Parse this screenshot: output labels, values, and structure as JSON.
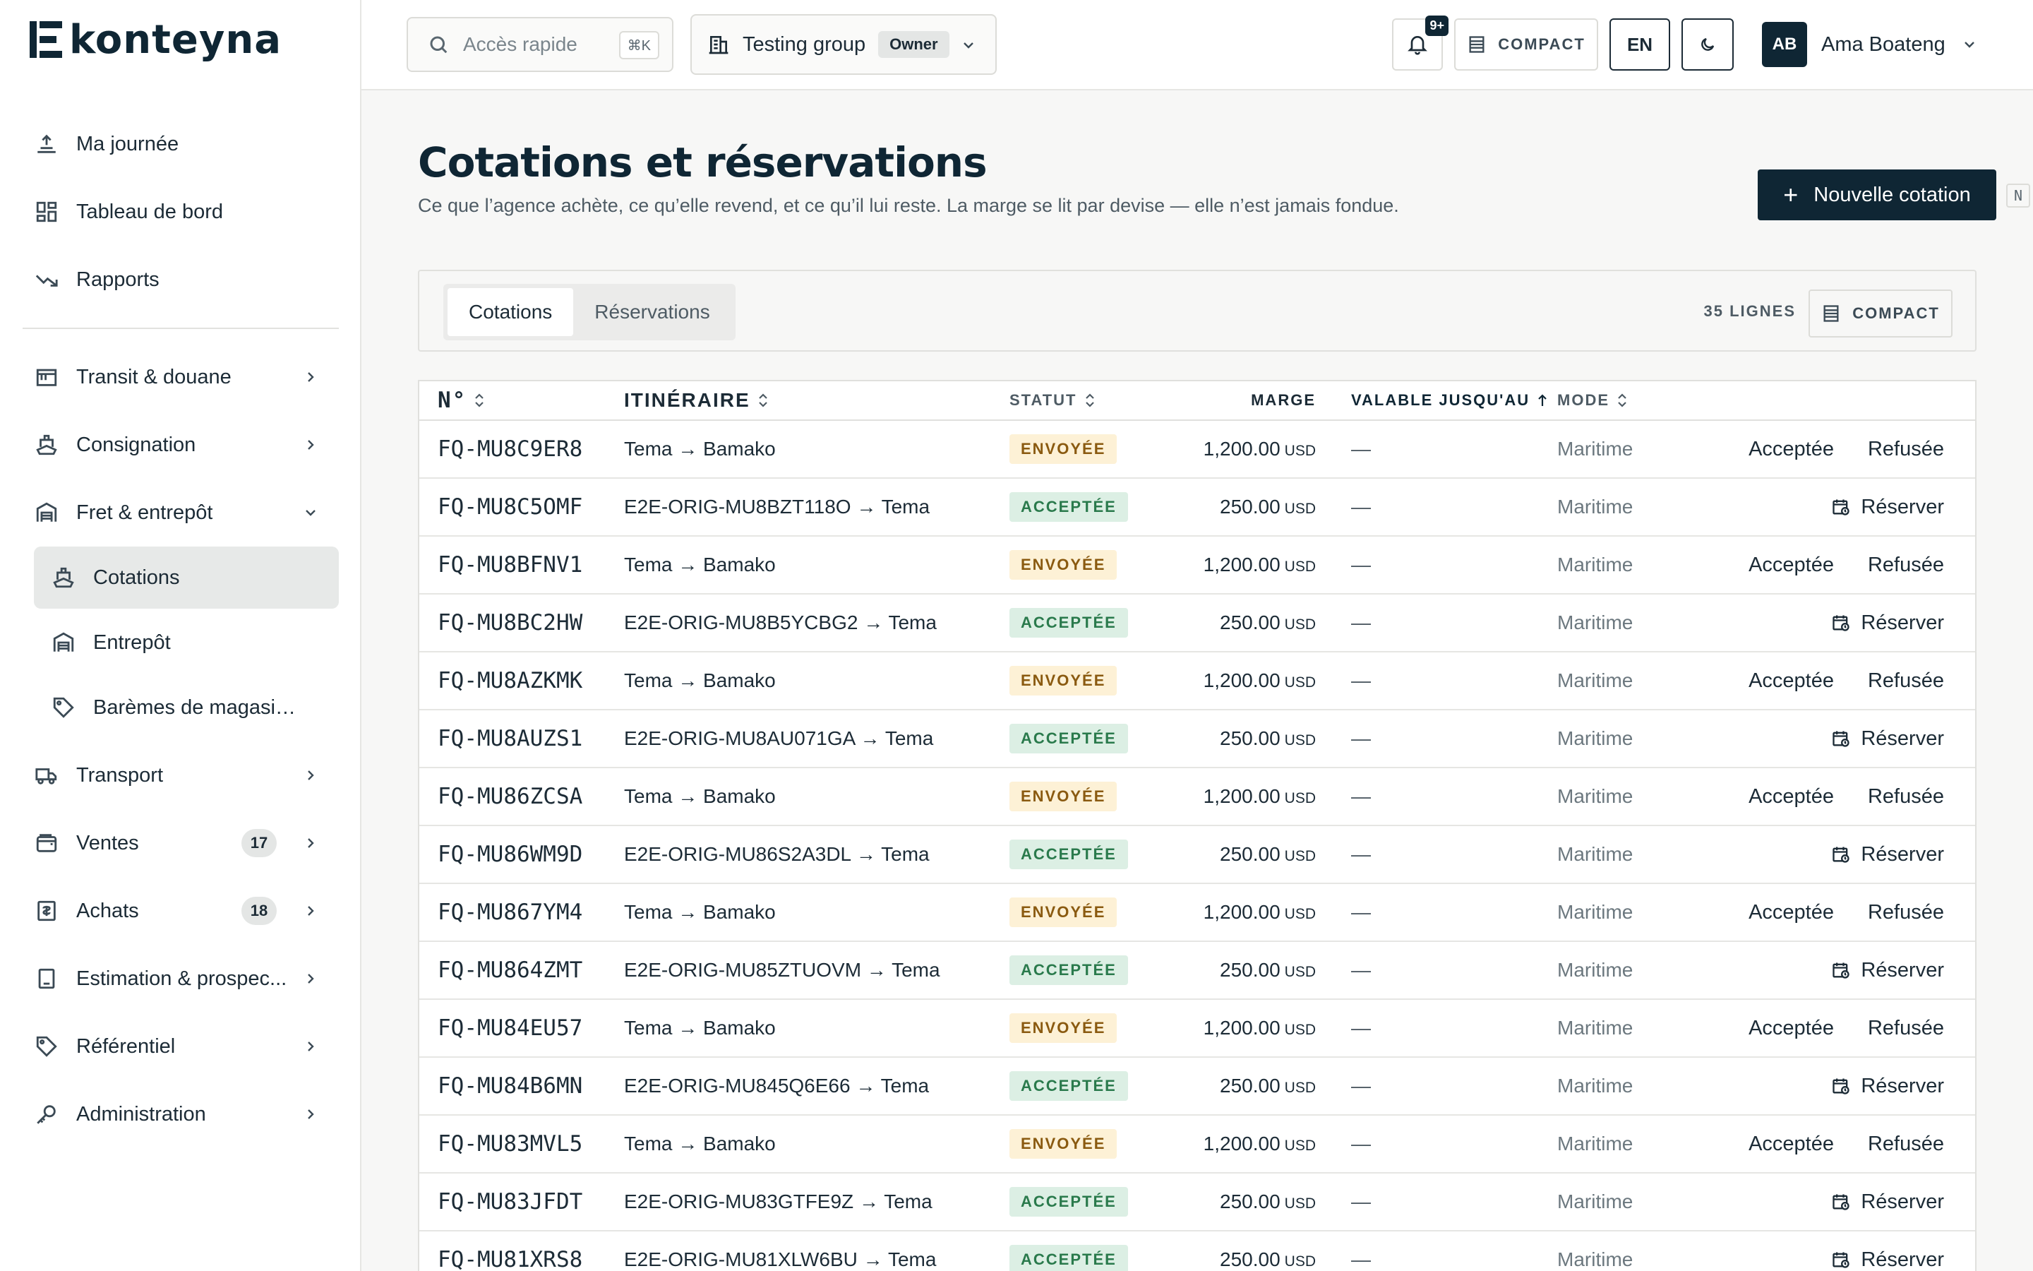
{
  "app": {
    "brand": "konteyna"
  },
  "sidebar": {
    "top": [
      {
        "label": "Ma journée",
        "icon": "upload-sun-icon"
      },
      {
        "label": "Tableau de bord",
        "icon": "dashboard-icon"
      },
      {
        "label": "Rapports",
        "icon": "trend-down-icon"
      }
    ],
    "groups": [
      {
        "label": "Transit & douane",
        "icon": "customs-icon"
      },
      {
        "label": "Consignation",
        "icon": "ship-icon"
      },
      {
        "label": "Fret & entrepôt",
        "icon": "warehouse-icon"
      }
    ],
    "sub": [
      {
        "label": "Cotations",
        "icon": "ship-icon"
      },
      {
        "label": "Entrepôt",
        "icon": "warehouse-icon"
      },
      {
        "label": "Barèmes de magasinage",
        "icon": "tag-icon"
      }
    ],
    "bottom": [
      {
        "label": "Transport",
        "icon": "truck-icon",
        "badge": ""
      },
      {
        "label": "Ventes",
        "icon": "wallet-icon",
        "badge": "17"
      },
      {
        "label": "Achats",
        "icon": "receipt-icon",
        "badge": "18"
      },
      {
        "label": "Estimation & prospec...",
        "icon": "calculator-icon",
        "badge": ""
      },
      {
        "label": "Référentiel",
        "icon": "tag-icon",
        "badge": ""
      },
      {
        "label": "Administration",
        "icon": "key-icon",
        "badge": ""
      }
    ]
  },
  "topbar": {
    "search_placeholder": "Accès rapide",
    "search_kbd": "⌘K",
    "group_name": "Testing group",
    "group_role": "Owner",
    "notif_count": "9+",
    "compact": "COMPACT",
    "lang": "EN",
    "user_initials": "AB",
    "user_name": "Ama Boateng"
  },
  "page": {
    "title": "Cotations et réservations",
    "subtitle": "Ce que l’agence achète, ce qu’elle revend, et ce qu’il lui reste. La marge se lit par devise — elle n’est jamais fondue.",
    "new_button": "Nouvelle cotation",
    "new_kbd": "N"
  },
  "tabs": {
    "items": [
      "Cotations",
      "Réservations"
    ],
    "active": 0,
    "lines": "35 LIGNES",
    "compact": "COMPACT"
  },
  "table": {
    "headers": {
      "num": "N°",
      "itineraire": "ITINÉRAIRE",
      "statut": "STATUT",
      "marge": "MARGE",
      "valide": "VALABLE JUSQU'AU",
      "mode": "MODE"
    },
    "rows": [
      {
        "num": "FQ-MU8C9ER8",
        "iti": "Tema → Bamako",
        "status": "ENVOYÉE",
        "kind": "sent",
        "amount": "1,200.00",
        "cur": "USD",
        "valid": "—",
        "mode": "Maritime"
      },
      {
        "num": "FQ-MU8C5OMF",
        "iti": "E2E-ORIG-MU8BZT118O → Tema",
        "status": "ACCEPTÉE",
        "kind": "acc",
        "amount": "250.00",
        "cur": "USD",
        "valid": "—",
        "mode": "Maritime"
      },
      {
        "num": "FQ-MU8BFNV1",
        "iti": "Tema → Bamako",
        "status": "ENVOYÉE",
        "kind": "sent",
        "amount": "1,200.00",
        "cur": "USD",
        "valid": "—",
        "mode": "Maritime"
      },
      {
        "num": "FQ-MU8BC2HW",
        "iti": "E2E-ORIG-MU8B5YCBG2 → Tema",
        "status": "ACCEPTÉE",
        "kind": "acc",
        "amount": "250.00",
        "cur": "USD",
        "valid": "—",
        "mode": "Maritime"
      },
      {
        "num": "FQ-MU8AZKMK",
        "iti": "Tema → Bamako",
        "status": "ENVOYÉE",
        "kind": "sent",
        "amount": "1,200.00",
        "cur": "USD",
        "valid": "—",
        "mode": "Maritime"
      },
      {
        "num": "FQ-MU8AUZS1",
        "iti": "E2E-ORIG-MU8AU071GA → Tema",
        "status": "ACCEPTÉE",
        "kind": "acc",
        "amount": "250.00",
        "cur": "USD",
        "valid": "—",
        "mode": "Maritime"
      },
      {
        "num": "FQ-MU86ZCSA",
        "iti": "Tema → Bamako",
        "status": "ENVOYÉE",
        "kind": "sent",
        "amount": "1,200.00",
        "cur": "USD",
        "valid": "—",
        "mode": "Maritime"
      },
      {
        "num": "FQ-MU86WM9D",
        "iti": "E2E-ORIG-MU86S2A3DL → Tema",
        "status": "ACCEPTÉE",
        "kind": "acc",
        "amount": "250.00",
        "cur": "USD",
        "valid": "—",
        "mode": "Maritime"
      },
      {
        "num": "FQ-MU867YM4",
        "iti": "Tema → Bamako",
        "status": "ENVOYÉE",
        "kind": "sent",
        "amount": "1,200.00",
        "cur": "USD",
        "valid": "—",
        "mode": "Maritime"
      },
      {
        "num": "FQ-MU864ZMT",
        "iti": "E2E-ORIG-MU85ZTUOVM → Tema",
        "status": "ACCEPTÉE",
        "kind": "acc",
        "amount": "250.00",
        "cur": "USD",
        "valid": "—",
        "mode": "Maritime"
      },
      {
        "num": "FQ-MU84EU57",
        "iti": "Tema → Bamako",
        "status": "ENVOYÉE",
        "kind": "sent",
        "amount": "1,200.00",
        "cur": "USD",
        "valid": "—",
        "mode": "Maritime"
      },
      {
        "num": "FQ-MU84B6MN",
        "iti": "E2E-ORIG-MU845Q6E66 → Tema",
        "status": "ACCEPTÉE",
        "kind": "acc",
        "amount": "250.00",
        "cur": "USD",
        "valid": "—",
        "mode": "Maritime"
      },
      {
        "num": "FQ-MU83MVL5",
        "iti": "Tema → Bamako",
        "status": "ENVOYÉE",
        "kind": "sent",
        "amount": "1,200.00",
        "cur": "USD",
        "valid": "—",
        "mode": "Maritime"
      },
      {
        "num": "FQ-MU83JFDT",
        "iti": "E2E-ORIG-MU83GTFE9Z → Tema",
        "status": "ACCEPTÉE",
        "kind": "acc",
        "amount": "250.00",
        "cur": "USD",
        "valid": "—",
        "mode": "Maritime"
      },
      {
        "num": "FQ-MU81XRS8",
        "iti": "E2E-ORIG-MU81XLW6BU → Tema",
        "status": "ACCEPTÉE",
        "kind": "acc",
        "amount": "250.00",
        "cur": "USD",
        "valid": "—",
        "mode": "Maritime"
      }
    ],
    "actions": {
      "accept": "Acceptée",
      "refuse": "Refusée",
      "book": "Réserver"
    }
  }
}
